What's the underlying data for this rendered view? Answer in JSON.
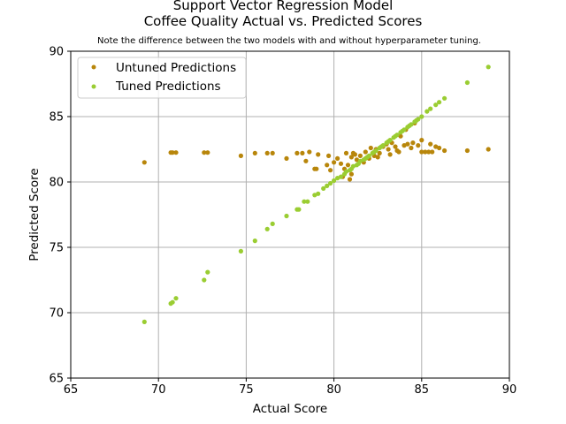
{
  "chart_data": {
    "type": "scatter",
    "title": "Support Vector Regression Model",
    "subtitle": "Coffee Quality Actual vs. Predicted Scores",
    "note": "Note the difference between the two models with and without hyperparameter tuning.",
    "xlabel": "Actual Score",
    "ylabel": "Predicted Score",
    "xlim": [
      65,
      90
    ],
    "ylim": [
      65,
      90
    ],
    "xticks": [
      "65",
      "70",
      "75",
      "80",
      "85",
      "90"
    ],
    "yticks": [
      "65",
      "70",
      "75",
      "80",
      "85",
      "90"
    ],
    "grid": true,
    "legend_position": "top-left",
    "series": [
      {
        "name": "Untuned Predictions",
        "color": "#b8860b",
        "points": [
          [
            69.2,
            81.5
          ],
          [
            70.7,
            82.25
          ],
          [
            70.8,
            82.25
          ],
          [
            71.0,
            82.25
          ],
          [
            72.6,
            82.25
          ],
          [
            72.8,
            82.25
          ],
          [
            74.7,
            82.0
          ],
          [
            75.5,
            82.2
          ],
          [
            76.2,
            82.2
          ],
          [
            76.5,
            82.2
          ],
          [
            77.3,
            81.8
          ],
          [
            77.9,
            82.2
          ],
          [
            78.2,
            82.2
          ],
          [
            78.4,
            81.6
          ],
          [
            78.6,
            82.3
          ],
          [
            78.9,
            81.0
          ],
          [
            79.0,
            81.0
          ],
          [
            79.1,
            82.1
          ],
          [
            79.6,
            81.3
          ],
          [
            79.7,
            82.0
          ],
          [
            79.8,
            80.9
          ],
          [
            80.0,
            81.5
          ],
          [
            80.2,
            81.8
          ],
          [
            80.4,
            81.4
          ],
          [
            80.5,
            80.4
          ],
          [
            80.6,
            81.0
          ],
          [
            80.7,
            82.2
          ],
          [
            80.8,
            81.3
          ],
          [
            80.9,
            80.2
          ],
          [
            81.0,
            80.6
          ],
          [
            81.0,
            81.9
          ],
          [
            81.1,
            82.2
          ],
          [
            81.2,
            82.1
          ],
          [
            81.3,
            81.7
          ],
          [
            81.5,
            82.0
          ],
          [
            81.7,
            81.5
          ],
          [
            81.8,
            82.3
          ],
          [
            82.0,
            81.8
          ],
          [
            82.1,
            82.6
          ],
          [
            82.3,
            82.0
          ],
          [
            82.4,
            82.5
          ],
          [
            82.5,
            81.9
          ],
          [
            82.6,
            82.2
          ],
          [
            82.8,
            82.7
          ],
          [
            83.0,
            82.9
          ],
          [
            83.1,
            82.5
          ],
          [
            83.2,
            82.1
          ],
          [
            83.3,
            83.0
          ],
          [
            83.5,
            82.7
          ],
          [
            83.6,
            82.4
          ],
          [
            83.7,
            82.3
          ],
          [
            83.8,
            83.5
          ],
          [
            84.0,
            82.8
          ],
          [
            84.1,
            84.0
          ],
          [
            84.2,
            82.9
          ],
          [
            84.4,
            82.6
          ],
          [
            84.5,
            83.0
          ],
          [
            84.6,
            84.5
          ],
          [
            84.8,
            82.8
          ],
          [
            85.0,
            83.2
          ],
          [
            85.0,
            82.3
          ],
          [
            85.2,
            82.3
          ],
          [
            85.4,
            82.3
          ],
          [
            85.5,
            82.9
          ],
          [
            85.6,
            82.3
          ],
          [
            85.8,
            82.7
          ],
          [
            86.0,
            82.6
          ],
          [
            86.3,
            82.4
          ],
          [
            87.6,
            82.4
          ],
          [
            88.8,
            82.5
          ]
        ]
      },
      {
        "name": "Tuned Predictions",
        "color": "#9acd32",
        "points": [
          [
            69.2,
            69.3
          ],
          [
            70.7,
            70.7
          ],
          [
            70.8,
            70.8
          ],
          [
            71.0,
            71.1
          ],
          [
            72.6,
            72.5
          ],
          [
            72.8,
            73.1
          ],
          [
            74.7,
            74.7
          ],
          [
            75.5,
            75.5
          ],
          [
            76.2,
            76.4
          ],
          [
            76.5,
            76.8
          ],
          [
            77.3,
            77.4
          ],
          [
            77.9,
            77.9
          ],
          [
            78.0,
            77.9
          ],
          [
            78.3,
            78.5
          ],
          [
            78.5,
            78.5
          ],
          [
            78.9,
            79.0
          ],
          [
            79.1,
            79.1
          ],
          [
            79.4,
            79.5
          ],
          [
            79.6,
            79.7
          ],
          [
            79.8,
            79.9
          ],
          [
            80.0,
            80.1
          ],
          [
            80.2,
            80.3
          ],
          [
            80.4,
            80.4
          ],
          [
            80.6,
            80.6
          ],
          [
            80.7,
            80.8
          ],
          [
            80.9,
            80.9
          ],
          [
            81.0,
            81.0
          ],
          [
            81.1,
            81.2
          ],
          [
            81.3,
            81.3
          ],
          [
            81.4,
            81.4
          ],
          [
            81.5,
            81.6
          ],
          [
            81.7,
            81.7
          ],
          [
            81.8,
            81.8
          ],
          [
            81.9,
            81.9
          ],
          [
            82.0,
            82.0
          ],
          [
            82.2,
            82.2
          ],
          [
            82.3,
            82.3
          ],
          [
            82.4,
            82.4
          ],
          [
            82.6,
            82.6
          ],
          [
            82.7,
            82.7
          ],
          [
            82.8,
            82.8
          ],
          [
            83.0,
            83.0
          ],
          [
            83.1,
            83.1
          ],
          [
            83.2,
            83.2
          ],
          [
            83.4,
            83.4
          ],
          [
            83.5,
            83.5
          ],
          [
            83.6,
            83.6
          ],
          [
            83.8,
            83.8
          ],
          [
            83.9,
            83.9
          ],
          [
            84.0,
            84.0
          ],
          [
            84.2,
            84.2
          ],
          [
            84.3,
            84.3
          ],
          [
            84.4,
            84.4
          ],
          [
            84.6,
            84.6
          ],
          [
            84.7,
            84.7
          ],
          [
            84.8,
            84.8
          ],
          [
            85.0,
            85.0
          ],
          [
            85.3,
            85.4
          ],
          [
            85.5,
            85.6
          ],
          [
            85.8,
            85.9
          ],
          [
            86.0,
            86.1
          ],
          [
            86.3,
            86.4
          ],
          [
            87.6,
            87.6
          ],
          [
            88.8,
            88.8
          ]
        ]
      }
    ]
  }
}
